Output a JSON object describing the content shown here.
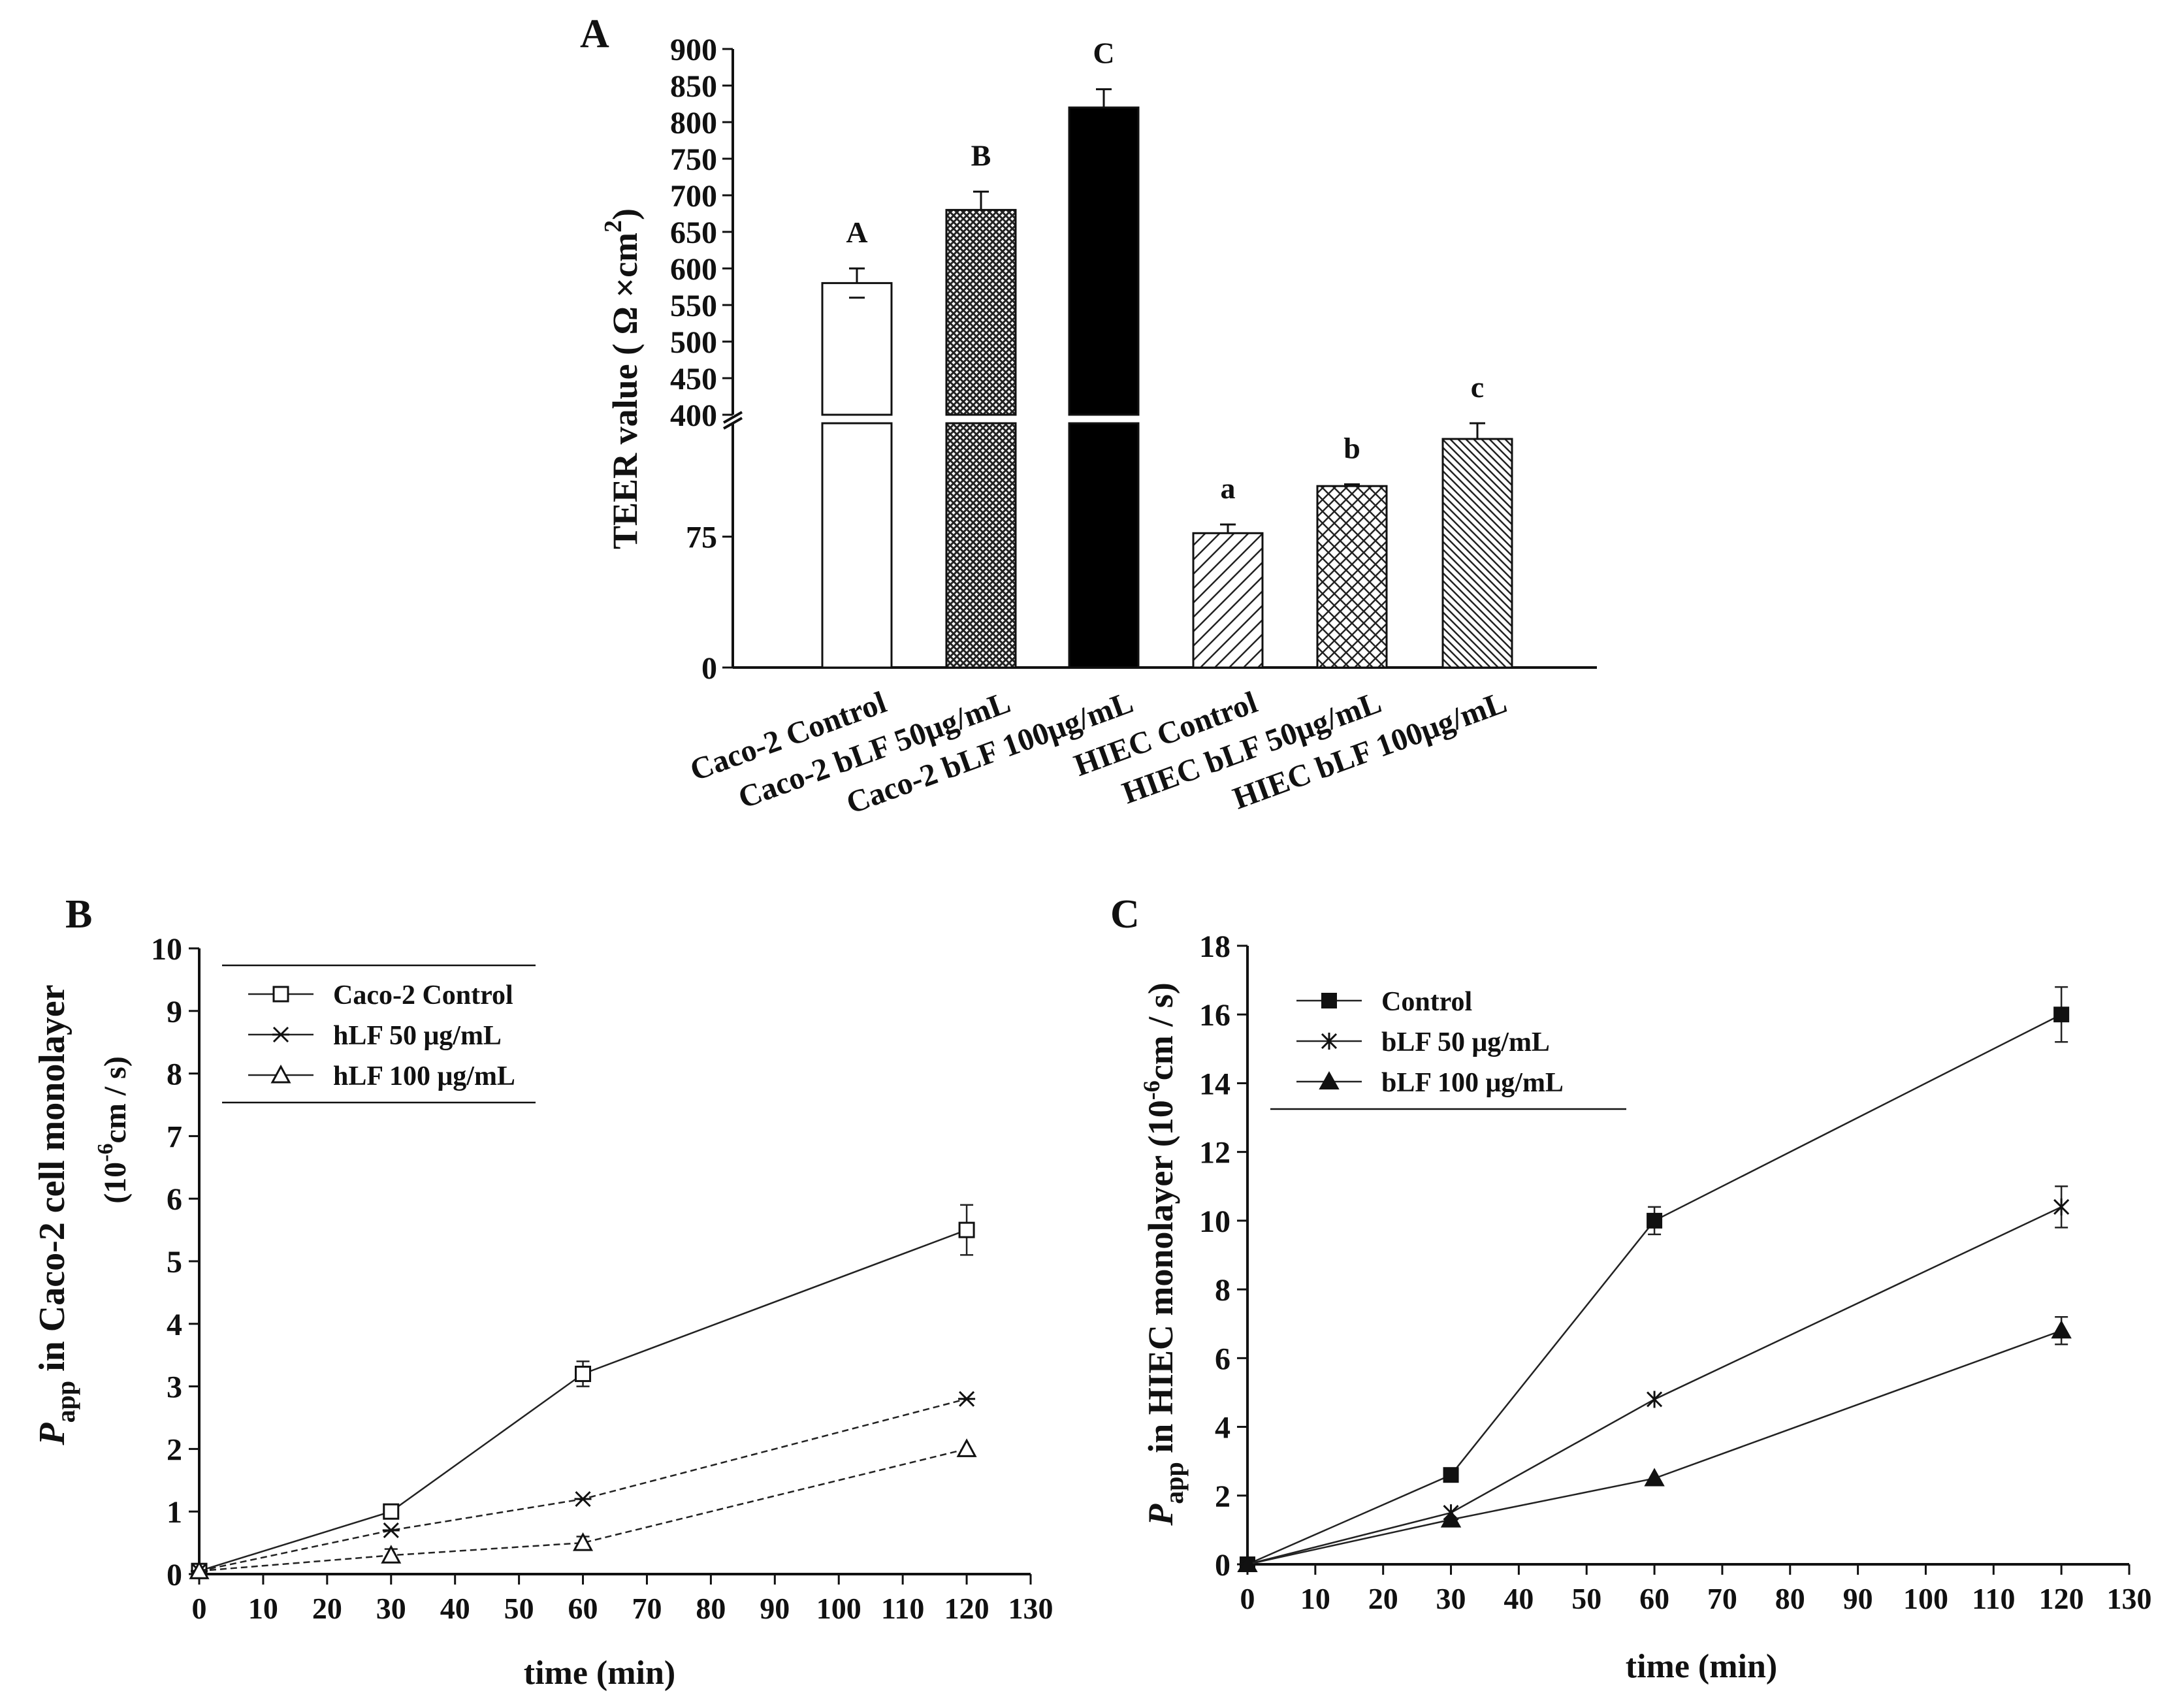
{
  "chart_data": [
    {
      "panel": "A",
      "type": "bar",
      "ylabel_main": "TEER value ( Ω ×cm",
      "ylabel_sup": "2",
      "ylabel_close": ")",
      "yaxis_break": {
        "lower_range": [
          0,
          140
        ],
        "upper_range": [
          400,
          900
        ]
      },
      "lower_ticks": [
        0,
        75
      ],
      "upper_ticks": [
        400,
        450,
        500,
        550,
        600,
        650,
        700,
        750,
        800,
        850,
        900
      ],
      "categories": [
        "Caco-2 Control",
        "Caco-2 bLF 50μg/mL",
        "Caco-2 bLF 100μg/mL",
        "HIEC Control",
        "HIEC bLF 50μg/mL",
        "HIEC bLF 100μg/mL"
      ],
      "values": [
        580,
        680,
        820,
        77,
        104,
        131
      ],
      "errors": [
        20,
        25,
        25,
        5,
        1,
        9
      ],
      "letters": [
        "A",
        "B",
        "C",
        "a",
        "b",
        "c"
      ],
      "fills": [
        "white",
        "dense-crosshatch",
        "black",
        "diagonal",
        "crosshatch",
        "dense-diagonal"
      ]
    },
    {
      "panel": "B",
      "type": "line",
      "xlabel": "time (min)",
      "ylabel_p": "P",
      "ylabel_sub": "app",
      "ylabel_line1": " in Caco-2 cell monolayer",
      "ylabel_line2a": "(10",
      "ylabel_sup": "-6",
      "ylabel_line2b": "cm / s)",
      "xlim": [
        0,
        130
      ],
      "ylim": [
        0,
        10
      ],
      "xticks": [
        0,
        10,
        20,
        30,
        40,
        50,
        60,
        70,
        80,
        90,
        100,
        110,
        120,
        130
      ],
      "yticks": [
        0,
        1,
        2,
        3,
        4,
        5,
        6,
        7,
        8,
        9,
        10
      ],
      "x": [
        0,
        30,
        60,
        120
      ],
      "series": [
        {
          "name": "Caco-2 Control",
          "values": [
            0.05,
            1.0,
            3.2,
            5.5
          ],
          "errors": [
            0,
            0,
            0.2,
            0.4
          ],
          "marker": "square-open",
          "dash": "solid"
        },
        {
          "name": "hLF 50 μg/mL",
          "values": [
            0.05,
            0.7,
            1.2,
            2.8
          ],
          "errors": [
            0,
            0,
            0,
            0
          ],
          "marker": "x-star",
          "dash": "dashed"
        },
        {
          "name": "hLF 100 μg/mL",
          "values": [
            0.05,
            0.3,
            0.5,
            2.0
          ],
          "errors": [
            0,
            0.1,
            0.1,
            0
          ],
          "marker": "triangle-open",
          "dash": "dashed"
        }
      ]
    },
    {
      "panel": "C",
      "type": "line",
      "xlabel": "time (min)",
      "ylabel_p": "P",
      "ylabel_sub": "app",
      "ylabel_line1": " in HIEC monolayer (10",
      "ylabel_sup": "-6",
      "ylabel_line1b": "cm / s)",
      "xlim": [
        0,
        130
      ],
      "ylim": [
        0,
        18
      ],
      "xticks": [
        0,
        10,
        20,
        30,
        40,
        50,
        60,
        70,
        80,
        90,
        100,
        110,
        120,
        130
      ],
      "yticks": [
        0,
        2,
        4,
        6,
        8,
        10,
        12,
        14,
        16,
        18
      ],
      "x": [
        0,
        30,
        60,
        120
      ],
      "series": [
        {
          "name": "Control",
          "values": [
            0,
            2.6,
            10.0,
            16.0
          ],
          "errors": [
            0,
            0,
            0.4,
            0.8
          ],
          "marker": "square-filled",
          "dash": "solid"
        },
        {
          "name": "bLF  50 μg/mL",
          "values": [
            0,
            1.5,
            4.8,
            10.4
          ],
          "errors": [
            0,
            0,
            0,
            0.6
          ],
          "marker": "star",
          "dash": "solid"
        },
        {
          "name": "bLF 100 μg/mL",
          "values": [
            0,
            1.3,
            2.5,
            6.8
          ],
          "errors": [
            0,
            0,
            0,
            0.4
          ],
          "marker": "triangle-filled",
          "dash": "solid"
        }
      ]
    }
  ],
  "panel_labels": [
    "A",
    "B",
    "C"
  ]
}
